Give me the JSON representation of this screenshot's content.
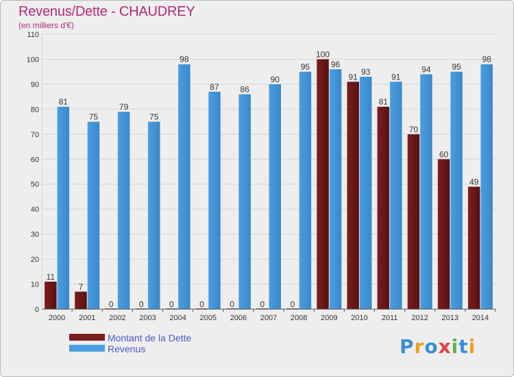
{
  "chart_data": {
    "type": "bar",
    "title": "Revenus/Dette - CHAUDREY",
    "subtitle": "(en milliers d'€)",
    "categories": [
      "2000",
      "2001",
      "2002",
      "2003",
      "2004",
      "2005",
      "2006",
      "2007",
      "2008",
      "2009",
      "2010",
      "2011",
      "2012",
      "2013",
      "2014"
    ],
    "series": [
      {
        "name": "Montant de la Dette",
        "color": "#7a1e1e",
        "values": [
          11,
          7,
          0,
          0,
          0,
          0,
          0,
          0,
          0,
          100,
          91,
          81,
          70,
          60,
          49
        ]
      },
      {
        "name": "Revenus",
        "color": "#4a9ee0",
        "values": [
          81,
          75,
          79,
          75,
          98,
          87,
          86,
          90,
          95,
          96,
          93,
          91,
          94,
          95,
          98
        ]
      }
    ],
    "ylim": [
      0,
      110
    ],
    "yticks": [
      0,
      10,
      20,
      30,
      40,
      50,
      60,
      70,
      80,
      90,
      100,
      110
    ],
    "grid": true,
    "legend": "bottom-left"
  },
  "logo": {
    "text": "Proxiti"
  }
}
